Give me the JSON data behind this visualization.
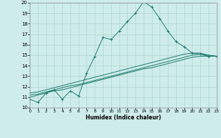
{
  "xlabel": "Humidex (Indice chaleur)",
  "background_color": "#ceecea",
  "grid_color": "#aed4d0",
  "line_color": "#1a7a6e",
  "x_values": [
    0,
    1,
    2,
    3,
    4,
    5,
    6,
    7,
    8,
    9,
    10,
    11,
    12,
    13,
    14,
    15,
    16,
    17,
    18,
    19,
    20,
    21,
    22,
    23
  ],
  "line1_y": [
    10.8,
    10.5,
    11.4,
    11.7,
    10.8,
    11.6,
    11.1,
    13.3,
    14.9,
    16.7,
    16.5,
    17.3,
    18.2,
    19.0,
    20.1,
    19.6,
    18.5,
    17.3,
    16.3,
    15.8,
    15.2,
    15.1,
    14.9,
    14.9
  ],
  "line2_y": [
    11.0,
    11.2,
    11.4,
    11.6,
    11.7,
    11.9,
    12.1,
    12.3,
    12.5,
    12.7,
    12.9,
    13.1,
    13.3,
    13.5,
    13.7,
    13.8,
    14.0,
    14.2,
    14.4,
    14.6,
    14.8,
    14.9,
    14.9,
    14.9
  ],
  "line3_y": [
    11.2,
    11.3,
    11.5,
    11.7,
    11.9,
    12.1,
    12.2,
    12.4,
    12.6,
    12.8,
    13.0,
    13.2,
    13.4,
    13.6,
    13.8,
    14.0,
    14.2,
    14.4,
    14.6,
    14.8,
    15.0,
    15.1,
    15.0,
    14.9
  ],
  "line4_y": [
    11.4,
    11.5,
    11.7,
    11.9,
    12.1,
    12.3,
    12.5,
    12.7,
    12.9,
    13.1,
    13.3,
    13.5,
    13.7,
    13.9,
    14.1,
    14.3,
    14.5,
    14.7,
    14.9,
    15.1,
    15.2,
    15.2,
    15.0,
    14.9
  ],
  "ylim": [
    10,
    20
  ],
  "xlim": [
    0,
    23
  ],
  "yticks": [
    10,
    11,
    12,
    13,
    14,
    15,
    16,
    17,
    18,
    19,
    20
  ],
  "xticks": [
    0,
    1,
    2,
    3,
    4,
    5,
    6,
    7,
    8,
    9,
    10,
    11,
    12,
    13,
    14,
    15,
    16,
    17,
    18,
    19,
    20,
    21,
    22,
    23
  ]
}
